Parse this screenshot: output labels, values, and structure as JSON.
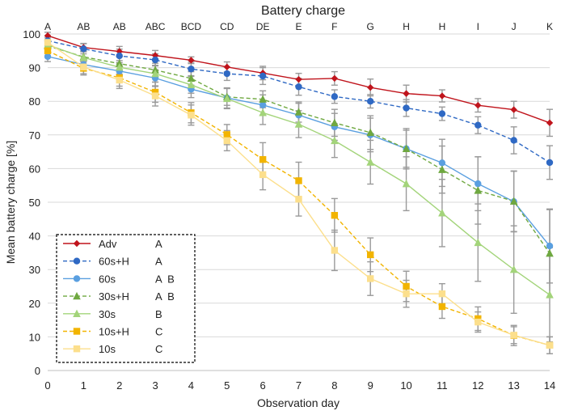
{
  "chart_data": {
    "type": "line",
    "title": "Battery charge",
    "xlabel": "Observation day",
    "ylabel": "Mean battery charge [%]",
    "xlim": [
      0,
      14
    ],
    "ylim": [
      0,
      100
    ],
    "x_ticks": [
      0,
      1,
      2,
      3,
      4,
      5,
      6,
      7,
      8,
      9,
      10,
      11,
      12,
      13,
      14
    ],
    "y_ticks": [
      0,
      10,
      20,
      30,
      40,
      50,
      60,
      70,
      80,
      90,
      100
    ],
    "grid": "horizontal",
    "legend_position": "bottom-left",
    "top_letters": [
      "A",
      "AB",
      "AB",
      "ABC",
      "BCD",
      "CD",
      "DE",
      "E",
      "F",
      "G",
      "H",
      "H",
      "I",
      "J",
      "K"
    ],
    "x": [
      0,
      1,
      2,
      3,
      4,
      5,
      6,
      7,
      8,
      9,
      10,
      11,
      12,
      13,
      14
    ],
    "series": [
      {
        "name": "Adv",
        "group": "A",
        "color": "#c0141c",
        "marker": "diamond",
        "dash": "solid",
        "values": [
          99.5,
          96.0,
          94.8,
          93.6,
          92.2,
          90.2,
          88.4,
          86.5,
          86.8,
          84.1,
          82.3,
          81.6,
          78.8,
          77.5,
          73.6
        ],
        "errors": [
          1.0,
          1.2,
          1.5,
          1.5,
          1.0,
          1.5,
          2.0,
          1.8,
          2.0,
          2.5,
          2.5,
          1.8,
          2.0,
          2.5,
          4.0
        ]
      },
      {
        "name": "60s+H",
        "group": "A",
        "color": "#2f69c4",
        "marker": "circle",
        "dash": "dashed",
        "values": [
          98.0,
          95.6,
          93.5,
          92.3,
          89.6,
          88.2,
          87.5,
          84.3,
          81.4,
          80.0,
          78.0,
          76.3,
          72.9,
          68.4,
          61.8
        ],
        "errors": [
          1.5,
          1.5,
          2.0,
          1.8,
          2.0,
          2.0,
          2.5,
          2.5,
          2.0,
          2.0,
          2.5,
          2.0,
          2.5,
          4.0,
          5.0
        ]
      },
      {
        "name": "60s",
        "group": "A  B",
        "color": "#5a9fe0",
        "marker": "circle",
        "dash": "solid",
        "values": [
          93.3,
          90.9,
          89.0,
          86.9,
          83.6,
          81.0,
          78.9,
          75.9,
          72.4,
          70.0,
          65.9,
          61.7,
          55.5,
          50.2,
          37.0
        ],
        "errors": [
          1.5,
          1.5,
          2.0,
          2.5,
          2.5,
          3.0,
          3.0,
          3.5,
          4.0,
          5.0,
          5.5,
          7.0,
          8.0,
          9.0,
          11.0
        ]
      },
      {
        "name": "30s+H",
        "group": "A  B",
        "color": "#6fa840",
        "marker": "triangle",
        "dash": "dashed",
        "values": [
          96.5,
          93.2,
          91.2,
          89.3,
          86.8,
          81.3,
          80.6,
          76.8,
          73.6,
          70.7,
          65.9,
          59.7,
          53.5,
          50.3,
          34.8
        ],
        "errors": [
          1.5,
          1.5,
          2.0,
          2.0,
          2.0,
          2.5,
          2.5,
          3.0,
          4.0,
          5.0,
          6.0,
          7.0,
          10.0,
          9.0,
          13.0
        ]
      },
      {
        "name": "30s",
        "group": "B",
        "color": "#a3d47a",
        "marker": "triangle",
        "dash": "solid",
        "values": [
          96.8,
          93.0,
          90.1,
          88.2,
          84.9,
          80.8,
          76.6,
          73.2,
          68.3,
          61.9,
          55.5,
          46.8,
          38.0,
          30.0,
          22.5
        ],
        "errors": [
          1.5,
          2.0,
          2.0,
          2.5,
          2.5,
          3.0,
          3.5,
          4.0,
          5.0,
          6.5,
          8.0,
          10.0,
          11.5,
          13.0,
          14.0
        ]
      },
      {
        "name": "10s+H",
        "group": "C",
        "color": "#f2b400",
        "marker": "square",
        "dash": "dashed",
        "values": [
          95.0,
          89.8,
          87.0,
          82.7,
          76.6,
          70.1,
          62.7,
          56.4,
          46.1,
          34.4,
          25.0,
          19.0,
          15.4,
          10.4,
          7.5
        ],
        "errors": [
          1.5,
          2.0,
          2.5,
          3.0,
          3.0,
          3.0,
          5.0,
          5.5,
          5.0,
          5.0,
          4.5,
          3.5,
          3.5,
          3.0,
          2.5
        ]
      },
      {
        "name": "10s",
        "group": "C",
        "color": "#fcdf8c",
        "marker": "square",
        "dash": "solid",
        "values": [
          97.5,
          90.2,
          86.3,
          81.6,
          75.9,
          68.3,
          58.2,
          50.9,
          35.7,
          27.3,
          22.8,
          22.8,
          14.4,
          10.5,
          7.5
        ],
        "errors": [
          1.5,
          2.0,
          2.5,
          3.0,
          3.0,
          3.0,
          4.5,
          5.0,
          6.0,
          5.0,
          4.0,
          3.0,
          3.0,
          2.5,
          2.5
        ]
      }
    ]
  }
}
